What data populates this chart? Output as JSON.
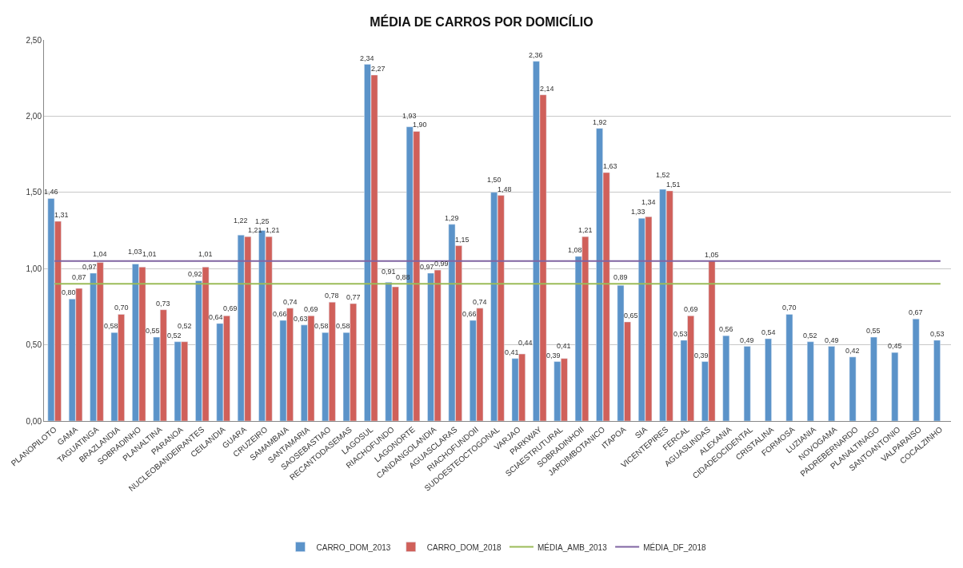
{
  "chart_data": {
    "type": "bar",
    "title": "MÉDIA DE CARROS POR DOMICÍLIO",
    "categories": [
      "PLANOPILOTO",
      "GAMA",
      "TAGUATINGA",
      "BRAZLANDIA",
      "SOBRADINHO",
      "PLANALTINA",
      "PARANOA",
      "NUCLEOBANDEIRANTES",
      "CEILANDIA",
      "GUARA",
      "CRUZEIRO",
      "SAMAMBAIA",
      "SANTAMARIA",
      "SAOSEBASTIAO",
      "RECANTODASEMAS",
      "LAGOSUL",
      "RIACHOFUNDO",
      "LAGONORTE",
      "CANDANGOLANDIA",
      "AGUASCLARAS",
      "RIACHOFUNDOII",
      "SUDOESTEOCTOGONAL",
      "VARJAO",
      "PARKWAY",
      "SCIAESTRUTURAL",
      "SOBRADINHOII",
      "JARDIMBOTANICO",
      "ITAPOA",
      "SIA",
      "VICENTEPIRES",
      "FERCAL",
      "AGUASLINDAS",
      "ALEXANIA",
      "CIDADEOCIDENTAL",
      "CRISTALINA",
      "FORMOSA",
      "LUZIANIA",
      "NOVOGAMA",
      "PADREBERNARDO",
      "PLANALTINAGO",
      "SANTOANTONIO",
      "VALPARAISO",
      "COCALZINHO"
    ],
    "series": [
      {
        "name": "CARRO_DOM_2013",
        "color": "#5b93c9",
        "values": [
          1.46,
          0.8,
          0.97,
          0.58,
          1.03,
          0.55,
          0.52,
          0.92,
          0.64,
          1.22,
          1.25,
          0.66,
          0.63,
          0.58,
          0.58,
          2.34,
          0.91,
          1.93,
          0.97,
          1.29,
          0.66,
          1.5,
          0.41,
          2.36,
          0.39,
          1.08,
          1.92,
          0.89,
          1.33,
          1.52,
          0.53,
          0.39,
          0.56,
          0.49,
          0.54,
          0.7,
          0.52,
          0.49,
          0.42,
          0.55,
          0.45,
          0.67,
          0.53
        ],
        "value_labels": [
          "1,46",
          "0,80",
          "0,97",
          "0,58",
          "1,03",
          "0,55",
          "0,52",
          "0,92",
          "0,64",
          "1,22",
          "1,25",
          "0,66",
          "0,63",
          "0,58",
          "0,58",
          "2,34",
          "0,91",
          "1,93",
          "0,97",
          "1,29",
          "0,66",
          "1,50",
          "0,41",
          "2,36",
          "0,39",
          "1,08",
          "1,92",
          "0,89",
          "1,33",
          "1,52",
          "0,53",
          "0,39",
          "0,56",
          "0,49",
          "0,54",
          "0,70",
          "0,52",
          "0,49",
          "0,42",
          "0,55",
          "0,45",
          "0,67",
          "0,53"
        ]
      },
      {
        "name": "CARRO_DOM_2018",
        "color": "#d0605a",
        "values": [
          1.31,
          0.87,
          1.04,
          0.7,
          1.01,
          0.73,
          0.52,
          1.01,
          0.69,
          1.21,
          1.21,
          0.74,
          0.69,
          0.78,
          0.77,
          2.27,
          0.88,
          1.9,
          0.99,
          1.15,
          0.74,
          1.48,
          0.44,
          2.14,
          0.41,
          1.21,
          1.63,
          0.65,
          1.34,
          1.51,
          0.69,
          1.05,
          null,
          null,
          null,
          null,
          null,
          null,
          null,
          null,
          null,
          null,
          null
        ],
        "value_labels": [
          "1,31",
          "0,87",
          "1,04",
          "0,70",
          "1,01",
          "0,73",
          "0,52",
          "1,01",
          "0,69",
          "1,21",
          "1,21",
          "0,74",
          "0,69",
          "0,78",
          "0,77",
          "2,27",
          "0,88",
          "1,90",
          "0,99",
          "1,15",
          "0,74",
          "1,48",
          "0,44",
          "2,14",
          "0,41",
          "1,21",
          "1,63",
          "0,65",
          "1,34",
          "1,51",
          "0,69",
          "1,05",
          null,
          null,
          null,
          null,
          null,
          null,
          null,
          null,
          null,
          null,
          null
        ]
      },
      {
        "name": "MÉDIA_AMB_2013",
        "type": "line",
        "color": "#9bbb59",
        "values": [
          0.9,
          0.9,
          0.9,
          0.9,
          0.9,
          0.9,
          0.9,
          0.9,
          0.9,
          0.9,
          0.9,
          0.9,
          0.9,
          0.9,
          0.9,
          0.9,
          0.9,
          0.9,
          0.9,
          0.9,
          0.9,
          0.9,
          0.9,
          0.9,
          0.9,
          0.9,
          0.9,
          0.9,
          0.9,
          0.9,
          0.9,
          0.9,
          0.9,
          0.9,
          0.9,
          0.9,
          0.9,
          0.9,
          0.9,
          0.9,
          0.9,
          0.9,
          0.9
        ]
      },
      {
        "name": "MÉDIA_DF_2018",
        "type": "line",
        "color": "#8064a2",
        "values": [
          1.05,
          1.05,
          1.05,
          1.05,
          1.05,
          1.05,
          1.05,
          1.05,
          1.05,
          1.05,
          1.05,
          1.05,
          1.05,
          1.05,
          1.05,
          1.05,
          1.05,
          1.05,
          1.05,
          1.05,
          1.05,
          1.05,
          1.05,
          1.05,
          1.05,
          1.05,
          1.05,
          1.05,
          1.05,
          1.05,
          1.05,
          1.05,
          1.05,
          1.05,
          1.05,
          1.05,
          1.05,
          1.05,
          1.05,
          1.05,
          1.05,
          1.05,
          1.05
        ]
      }
    ],
    "ylim": [
      0,
      2.5
    ],
    "yticks": [
      {
        "value": 0,
        "label": "0,00"
      },
      {
        "value": 0.5,
        "label": "0,50"
      },
      {
        "value": 1.0,
        "label": "1,00"
      },
      {
        "value": 1.5,
        "label": "1,50"
      },
      {
        "value": 2.0,
        "label": "2,00"
      },
      {
        "value": 2.5,
        "label": "2,50"
      }
    ],
    "grid": "y",
    "legend": "bottom",
    "marker": "none",
    "line_style": "solid"
  }
}
